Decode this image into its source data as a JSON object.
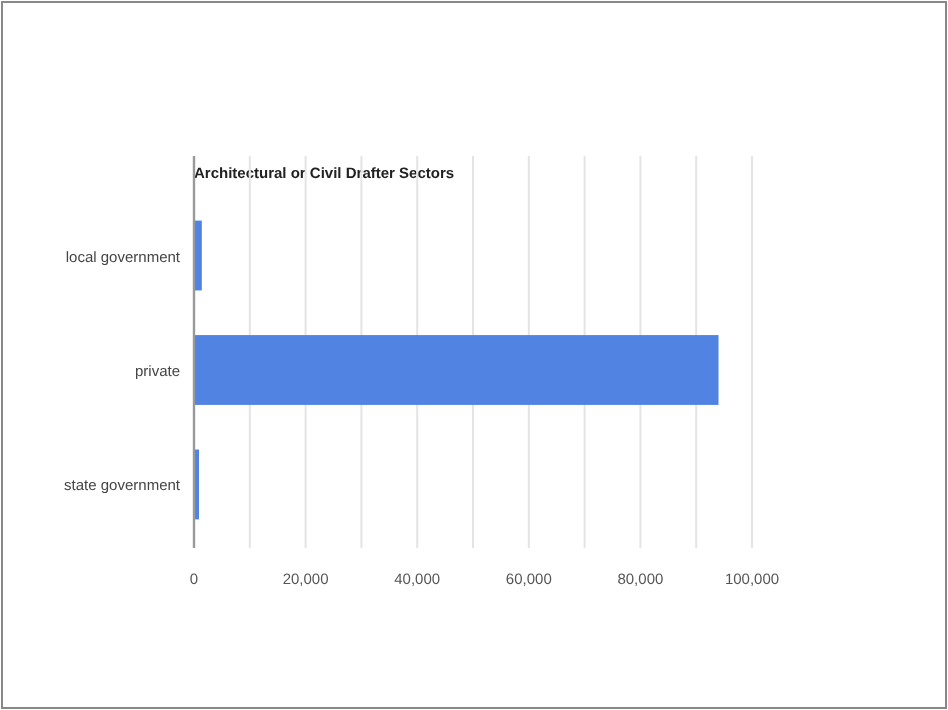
{
  "chart_data": {
    "type": "bar",
    "orientation": "horizontal",
    "title": "Architectural or Civil Drafter Sectors",
    "categories": [
      "local government",
      "private",
      "state government"
    ],
    "values": [
      1400,
      94000,
      900
    ],
    "color": "#5083e2",
    "xlim": [
      0,
      100000
    ],
    "xticks": [
      0,
      {
        "value": 10000,
        "label": null
      },
      {
        "value": 20000,
        "label": "20,000"
      },
      {
        "value": 30000,
        "label": null
      },
      {
        "value": 40000,
        "label": "40,000"
      },
      {
        "value": 50000,
        "label": null
      },
      {
        "value": 60000,
        "label": "60,000"
      },
      {
        "value": 70000,
        "label": null
      },
      {
        "value": 80000,
        "label": "80,000"
      },
      {
        "value": 90000,
        "label": null
      },
      {
        "value": 100000,
        "label": "100,000"
      }
    ],
    "grid": "x"
  }
}
